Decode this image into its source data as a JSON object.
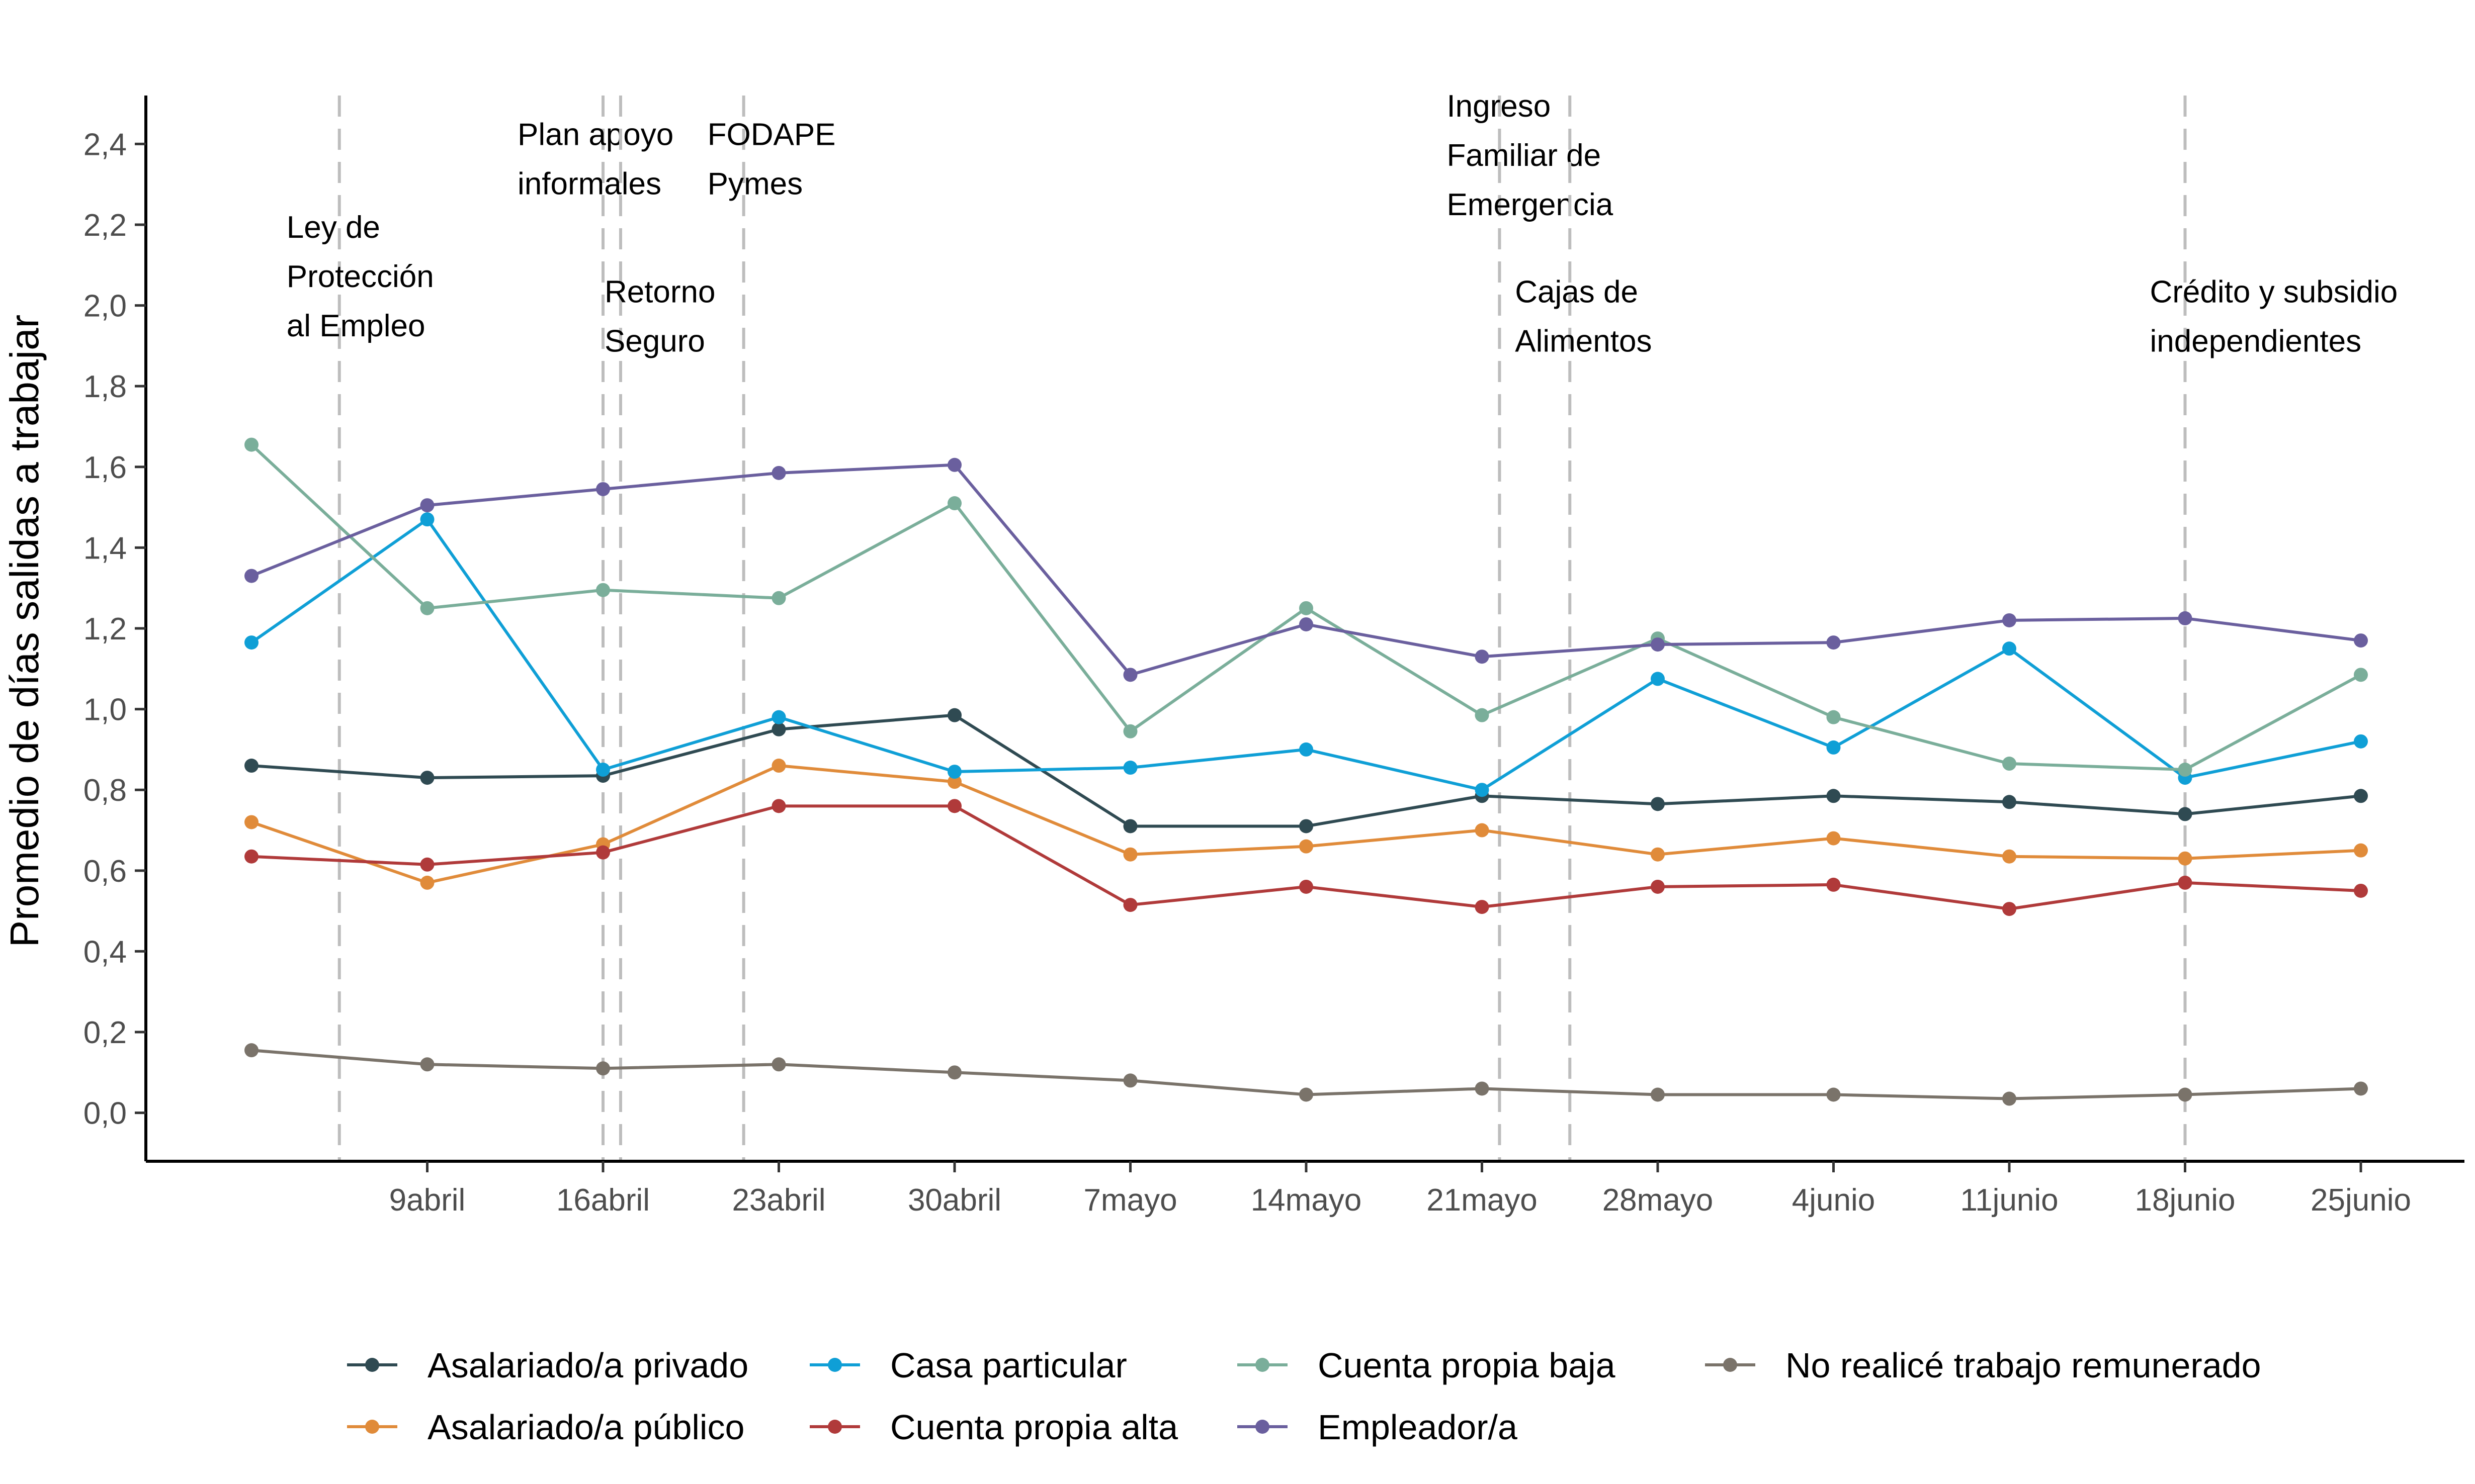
{
  "chart_data": {
    "type": "line",
    "ylabel": "Promedio de días salidas a trabajar",
    "xlabel": "",
    "ylim": [
      -0.12,
      2.52
    ],
    "y_ticks": [
      "0,0",
      "0,2",
      "0,4",
      "0,6",
      "0,8",
      "1,0",
      "1,2",
      "1,4",
      "1,6",
      "1,8",
      "2,0",
      "2,2",
      "2,4"
    ],
    "y_tick_values": [
      0,
      0.2,
      0.4,
      0.6,
      0.8,
      1.0,
      1.2,
      1.4,
      1.6,
      1.8,
      2.0,
      2.2,
      2.4
    ],
    "x_positions": [
      0,
      1,
      2,
      3,
      4,
      5,
      6,
      7,
      8,
      9,
      10,
      11,
      12
    ],
    "x_tick_labels": [
      "",
      "9abril",
      "16abril",
      "23abril",
      "30abril",
      "7mayo",
      "14mayo",
      "21mayo",
      "28mayo",
      "4junio",
      "11junio",
      "18junio",
      "25junio"
    ],
    "grid": false,
    "legend_position": "bottom",
    "series": [
      {
        "name": "Asalariado/a privado",
        "color": "#2f4a52",
        "values": [
          0.86,
          0.83,
          0.835,
          0.95,
          0.985,
          0.71,
          0.71,
          0.785,
          0.765,
          0.785,
          0.77,
          0.74,
          0.785
        ]
      },
      {
        "name": "Asalariado/a público",
        "color": "#e08b3a",
        "values": [
          0.72,
          0.57,
          0.665,
          0.86,
          0.82,
          0.64,
          0.66,
          0.7,
          0.64,
          0.68,
          0.635,
          0.63,
          0.65
        ]
      },
      {
        "name": "Casa particular",
        "color": "#0f9fd6",
        "values": [
          1.165,
          1.47,
          0.85,
          0.98,
          0.845,
          0.855,
          0.9,
          0.8,
          1.075,
          0.905,
          1.15,
          0.83,
          0.92
        ]
      },
      {
        "name": "Cuenta propia alta",
        "color": "#b03a3a",
        "values": [
          0.635,
          0.615,
          0.645,
          0.76,
          0.76,
          0.515,
          0.56,
          0.51,
          0.56,
          0.565,
          0.505,
          0.57,
          0.55
        ]
      },
      {
        "name": "Cuenta propia baja",
        "color": "#7aae9a",
        "values": [
          1.655,
          1.25,
          1.295,
          1.275,
          1.51,
          0.945,
          1.25,
          0.985,
          1.175,
          0.98,
          0.865,
          0.85,
          1.085
        ]
      },
      {
        "name": "Empleador/a",
        "color": "#6a5f9e",
        "values": [
          1.33,
          1.505,
          1.545,
          1.585,
          1.605,
          1.085,
          1.21,
          1.13,
          1.16,
          1.165,
          1.22,
          1.225,
          1.17
        ]
      },
      {
        "name": "No realicé trabajo remunerado",
        "color": "#7a736a",
        "values": [
          0.155,
          0.12,
          0.11,
          0.12,
          0.1,
          0.08,
          0.045,
          0.06,
          0.045,
          0.045,
          0.035,
          0.045,
          0.06
        ]
      }
    ],
    "annotations": [
      {
        "x": 0.5,
        "lines": [
          "Ley de",
          "Protección",
          "al Empleo"
        ],
        "top_value": 2.16
      },
      {
        "x": 2.0,
        "lines": [
          "Plan apoyo",
          "informales"
        ],
        "top_value": 2.39
      },
      {
        "x": 2.1,
        "lines": [
          "Retorno",
          "Seguro"
        ],
        "top_value": 2.0
      },
      {
        "x": 2.8,
        "lines": [
          "FODAPE",
          "Pymes"
        ],
        "top_value": 2.39
      },
      {
        "x": 7.1,
        "lines": [
          "Ingreso",
          "Familiar de",
          "Emergencia"
        ],
        "top_value": 2.46
      },
      {
        "x": 7.5,
        "lines": [
          "Cajas de",
          "Alimentos"
        ],
        "top_value": 2.0
      },
      {
        "x": 11.0,
        "lines": [
          "Crédito y subsidio",
          "independientes"
        ],
        "top_value": 2.0
      }
    ],
    "legend_rows": [
      [
        "Asalariado/a privado",
        "Casa particular",
        "Cuenta propia baja",
        "No realicé trabajo remunerado"
      ],
      [
        "Asalariado/a público",
        "Cuenta propia alta",
        "Empleador/a"
      ]
    ]
  }
}
